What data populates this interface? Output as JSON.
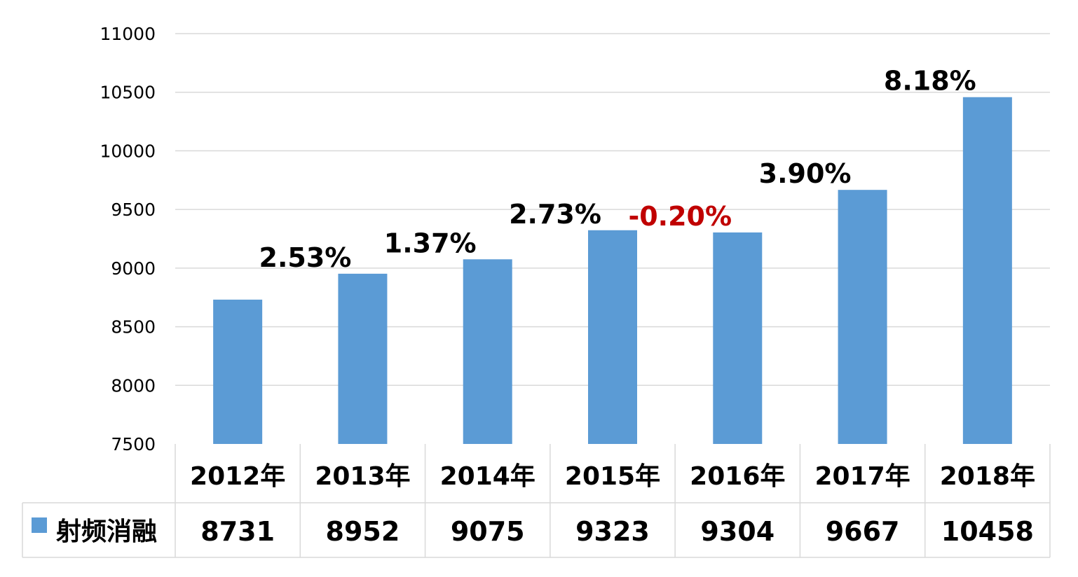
{
  "colors": {
    "bar": "#5b9bd5",
    "grid": "#d9d9d9",
    "negative": "#c00000",
    "text": "#000000"
  },
  "chart_data": {
    "type": "bar",
    "categories": [
      "2012年",
      "2013年",
      "2014年",
      "2015年",
      "2016年",
      "2017年",
      "2018年"
    ],
    "series": [
      {
        "name": "射频消融",
        "values": [
          8731,
          8952,
          9075,
          9323,
          9304,
          9667,
          10458
        ]
      }
    ],
    "value_labels": [
      "8731",
      "8952",
      "9075",
      "9323",
      "9304",
      "9667",
      "10458"
    ],
    "growth_labels": [
      "",
      "2.53%",
      "1.37%",
      "2.73%",
      "-0.20%",
      "3.90%",
      "8.18%"
    ],
    "yticks": [
      "7500",
      "8000",
      "8500",
      "9000",
      "9500",
      "10000",
      "10500",
      "11000"
    ],
    "ylim": [
      7500,
      11000
    ],
    "grid": true,
    "legend": "data-table"
  }
}
